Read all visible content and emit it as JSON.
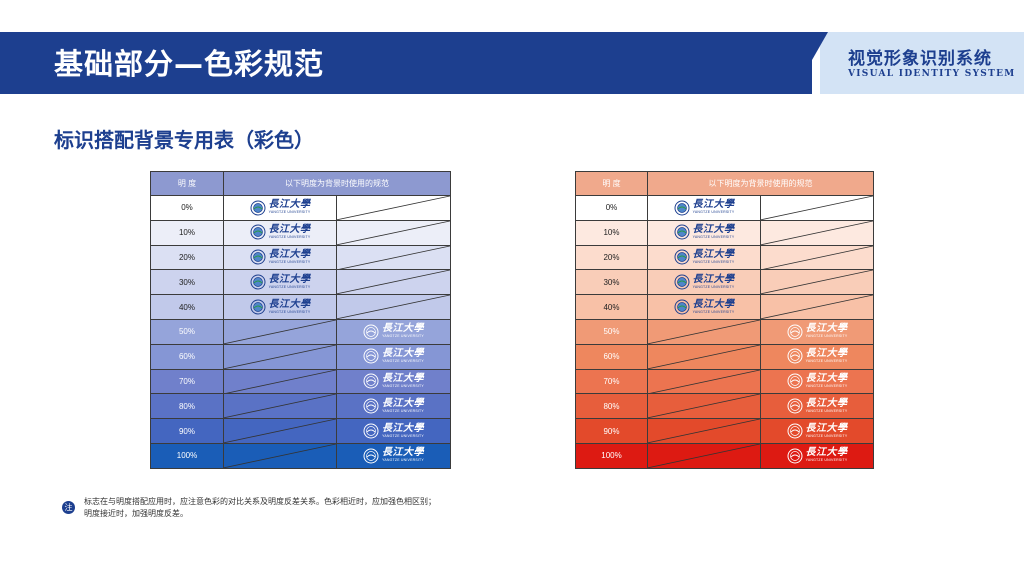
{
  "header": {
    "title": "基础部分—色彩规范",
    "vis_cn": "视觉形象识别系统",
    "vis_en": "VISUAL IDENTITY SYSTEM"
  },
  "section_title": "标识搭配背景专用表（彩色）",
  "logo": {
    "cn": "長江大學",
    "en": "YANGTZE UNIVERSITY"
  },
  "tables": [
    {
      "header_left": "明 度",
      "header_right": "以下明度为背景时使用的规范",
      "header_color": "#8d99d0",
      "levels": [
        "0%",
        "10%",
        "20%",
        "30%",
        "40%",
        "50%",
        "60%",
        "70%",
        "80%",
        "90%",
        "100%"
      ],
      "colors": [
        "#ffffff",
        "#eceef8",
        "#dbe0f3",
        "#cdd3ee",
        "#c1c9ea",
        "#95a4da",
        "#8596d5",
        "#7080cb",
        "#5a72c5",
        "#4466c0",
        "#1a5db7"
      ],
      "logo_position": [
        "left",
        "left",
        "left",
        "left",
        "left",
        "right",
        "right",
        "right",
        "right",
        "right",
        "right"
      ]
    },
    {
      "header_left": "明 度",
      "header_right": "以下明度为背景时使用的规范",
      "header_color": "#f0a98c",
      "levels": [
        "0%",
        "10%",
        "20%",
        "30%",
        "40%",
        "50%",
        "60%",
        "70%",
        "80%",
        "90%",
        "100%"
      ],
      "colors": [
        "#ffffff",
        "#fde9e0",
        "#fcdccd",
        "#f9cdb8",
        "#f8c1a7",
        "#f09a76",
        "#ee875e",
        "#ec7450",
        "#e75e3c",
        "#e34a2b",
        "#dd1a12"
      ],
      "logo_position": [
        "left",
        "left",
        "left",
        "left",
        "left",
        "right",
        "right",
        "right",
        "right",
        "right",
        "right"
      ]
    }
  ],
  "note": {
    "badge": "注",
    "line1": "标志在与明度搭配应用时，应注意色彩的对比关系及明度反差关系。色彩相近时，应加强色相区别；",
    "line2": "明度接近时，加强明度反差。"
  }
}
